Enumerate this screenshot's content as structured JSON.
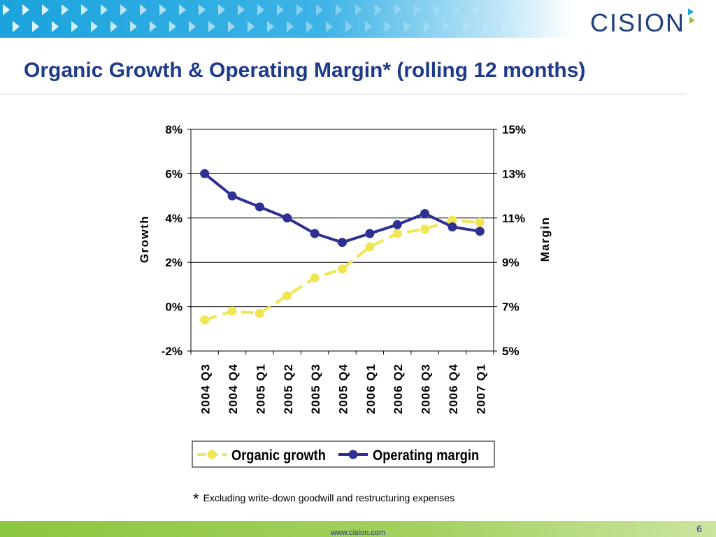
{
  "brand": {
    "logo_text": "CISION"
  },
  "slide": {
    "title": "Organic Growth & Operating Margin* (rolling 12 months)",
    "footnote_mark": "*",
    "footnote": "Excluding write-down goodwill and restructuring expenses",
    "url": "www.cision.com",
    "page_number": "6"
  },
  "colors": {
    "title": "#1e3a8a",
    "organic_growth": "#f0e653",
    "operating_margin": "#2e3192",
    "top_band": "#1aa3dc",
    "bottom_band": "#8dc63f"
  },
  "chart_data": {
    "type": "line",
    "categories": [
      "2004 Q3",
      "2004 Q4",
      "2005 Q1",
      "2005 Q2",
      "2005 Q3",
      "2005 Q4",
      "2006 Q1",
      "2006 Q2",
      "2006 Q3",
      "2006 Q4",
      "2007 Q1"
    ],
    "ylabel": "Growth",
    "y2label": "Margin",
    "ylim": [
      -2,
      8
    ],
    "y2lim": [
      5,
      15
    ],
    "yticks": [
      "-2%",
      "0%",
      "2%",
      "4%",
      "6%",
      "8%"
    ],
    "y2ticks": [
      "5%",
      "7%",
      "9%",
      "11%",
      "13%",
      "15%"
    ],
    "grid": true,
    "legend": "bottom",
    "series": [
      {
        "name": "Organic growth",
        "axis": "left",
        "style": "dashed",
        "values": [
          -0.6,
          -0.2,
          -0.3,
          0.5,
          1.3,
          1.7,
          2.7,
          3.3,
          3.5,
          3.9,
          3.8
        ]
      },
      {
        "name": "Operating margin",
        "axis": "right",
        "style": "solid",
        "values": [
          13.0,
          12.0,
          11.5,
          11.0,
          10.3,
          9.9,
          10.3,
          10.7,
          11.2,
          10.6,
          10.4
        ]
      }
    ]
  }
}
